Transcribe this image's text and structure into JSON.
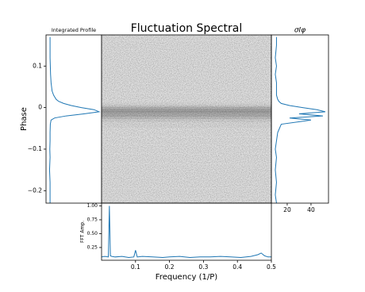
{
  "chart_data": [
    {
      "type": "line",
      "orientation": "horizontal",
      "title": "Integrated Profile",
      "ylabel": "Phase",
      "color": "#1f77b4",
      "y": [
        0.17,
        0.15,
        0.12,
        0.1,
        0.08,
        0.06,
        0.04,
        0.03,
        0.02,
        0.015,
        0.01,
        0.005,
        0,
        -0.005,
        -0.01,
        -0.015,
        -0.02,
        -0.025,
        -0.03,
        -0.04,
        -0.06,
        -0.08,
        -0.1,
        -0.12,
        -0.15,
        -0.18,
        -0.21,
        -0.23
      ],
      "values": [
        0.03,
        0.03,
        0.03,
        0.035,
        0.04,
        0.05,
        0.07,
        0.1,
        0.15,
        0.2,
        0.3,
        0.45,
        0.65,
        0.9,
        1.0,
        0.7,
        0.35,
        0.12,
        0.05,
        0.035,
        0.03,
        0.03,
        0.025,
        0.03,
        0.02,
        0.03,
        0.03,
        0.03
      ],
      "xlim": [
        -0.05,
        1.05
      ],
      "ylim": [
        -0.23,
        0.175
      ],
      "yticks": [
        0.1,
        0,
        {
          "value": -0.1,
          "label": "−0.1"
        },
        {
          "value": -0.2,
          "label": "−0.2"
        }
      ]
    },
    {
      "type": "heatmap",
      "title": "Fluctuation Spectral",
      "y": [
        0.17,
        0.15,
        0.12,
        0.1,
        0.08,
        0.06,
        0.04,
        0.03,
        0.02,
        0.015,
        0.01,
        0.005,
        0,
        -0.005,
        -0.01,
        -0.015,
        -0.02,
        -0.025,
        -0.03,
        -0.04,
        -0.06,
        -0.08,
        -0.1,
        -0.12,
        -0.15,
        -0.18,
        -0.21,
        -0.23
      ],
      "values": [
        0.12,
        0.12,
        0.12,
        0.12,
        0.12,
        0.12,
        0.12,
        0.12,
        0.12,
        0.12,
        0.14,
        0.18,
        0.3,
        0.35,
        0.38,
        0.35,
        0.32,
        0.25,
        0.18,
        0.14,
        0.12,
        0.12,
        0.12,
        0.12,
        0.12,
        0.12,
        0.12,
        0.12
      ],
      "ylim": [
        -0.23,
        0.175
      ]
    },
    {
      "type": "line",
      "orientation": "horizontal",
      "title": "σIφ",
      "color": "#1f77b4",
      "y": [
        0.17,
        0.15,
        0.12,
        0.1,
        0.08,
        0.06,
        0.04,
        0.03,
        0.02,
        0.015,
        0.01,
        0.005,
        0,
        -0.005,
        -0.01,
        -0.015,
        -0.02,
        -0.025,
        -0.03,
        -0.04,
        -0.06,
        -0.08,
        -0.1,
        -0.12,
        -0.15,
        -0.18,
        -0.21,
        -0.23
      ],
      "values": [
        11,
        11,
        10,
        11,
        10,
        11,
        11,
        11,
        12,
        13,
        15,
        22,
        33,
        45,
        52,
        30,
        50,
        22,
        40,
        15,
        12,
        11,
        10,
        11,
        10,
        11,
        10,
        11
      ],
      "xlim": [
        6.7,
        54.7
      ],
      "ylim": [
        -0.23,
        0.175
      ],
      "xticks": [
        20,
        40
      ]
    },
    {
      "type": "line",
      "ylabel": "FFT Amp.",
      "xlabel": "Frequency (1/P)",
      "color": "#1f77b4",
      "x": [
        0.0,
        0.01,
        0.02,
        0.023,
        0.026,
        0.03,
        0.04,
        0.06,
        0.08,
        0.095,
        0.1,
        0.105,
        0.12,
        0.15,
        0.18,
        0.2,
        0.23,
        0.26,
        0.29,
        0.32,
        0.35,
        0.38,
        0.41,
        0.44,
        0.46,
        0.47,
        0.48,
        0.49,
        0.5
      ],
      "values": [
        0.08,
        0.09,
        0.08,
        1.0,
        0.1,
        0.09,
        0.08,
        0.09,
        0.07,
        0.08,
        0.2,
        0.08,
        0.09,
        0.08,
        0.07,
        0.08,
        0.09,
        0.07,
        0.08,
        0.08,
        0.09,
        0.08,
        0.07,
        0.09,
        0.12,
        0.15,
        0.1,
        0.08,
        0.08
      ],
      "xlim": [
        0,
        0.5
      ],
      "ylim": [
        0.02,
        1.05
      ],
      "xticks": [
        0.1,
        0.2,
        0.3,
        0.4,
        0.5
      ],
      "yticks": [
        {
          "value": 1,
          "label": "1.00"
        },
        {
          "value": 0.75,
          "label": "0.75"
        },
        {
          "value": 0.5,
          "label": "0.50"
        },
        {
          "value": 0.25,
          "label": "0.25"
        }
      ]
    }
  ]
}
